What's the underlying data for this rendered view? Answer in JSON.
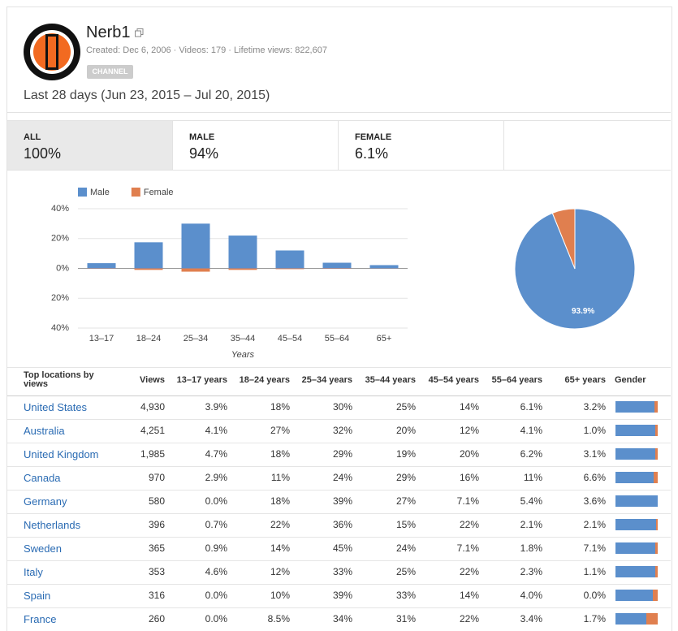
{
  "header": {
    "title": "Nerb1",
    "meta": "Created: Dec 6, 2006 · Videos: 179 · Lifetime views: 822,607",
    "badge": "CHANNEL"
  },
  "date_range": "Last 28 days (Jun 23, 2015 – Jul 20, 2015)",
  "tabs": [
    {
      "label": "ALL",
      "value": "100%"
    },
    {
      "label": "MALE",
      "value": "94%"
    },
    {
      "label": "FEMALE",
      "value": "6.1%"
    }
  ],
  "chart_data": [
    {
      "type": "bar",
      "x_label": "Years",
      "categories": [
        "13–17",
        "18–24",
        "25–34",
        "35–44",
        "45–54",
        "55–64",
        "65+"
      ],
      "series": [
        {
          "name": "Male",
          "color": "#5b8fcc",
          "values": [
            3.5,
            17.5,
            30,
            22,
            12,
            3.8,
            2.2
          ]
        },
        {
          "name": "Female",
          "color": "#e07f4f",
          "values": [
            -0.2,
            -1,
            -2.2,
            -1,
            -0.5,
            -0.3,
            -0.1
          ]
        }
      ],
      "ylim": [
        -40,
        40
      ],
      "yticks": [
        {
          "value": 40,
          "label": "40%"
        },
        {
          "value": 20,
          "label": "20%"
        },
        {
          "value": 0,
          "label": "0%"
        },
        {
          "value": -20,
          "label": "20%"
        },
        {
          "value": -40,
          "label": "40%"
        }
      ],
      "grid": true,
      "legend": "top-left"
    },
    {
      "type": "pie",
      "values": [
        93.9,
        6.1
      ],
      "colors": [
        "#5b8fcc",
        "#e07f4f"
      ],
      "value_labels": [
        "93.9%",
        null
      ]
    }
  ],
  "table": {
    "headers": [
      "Top locations by views",
      "Views",
      "13–17 years",
      "18–24 years",
      "25–34 years",
      "35–44 years",
      "45–54 years",
      "55–64 years",
      "65+ years",
      "Gender"
    ],
    "gender_colors": [
      "#5b8fcc",
      "#e07f4f"
    ],
    "rows": [
      {
        "location": "United States",
        "views": "4,930",
        "ages": [
          "3.9%",
          "18%",
          "30%",
          "25%",
          "14%",
          "6.1%",
          "3.2%"
        ],
        "male_pct": 92
      },
      {
        "location": "Australia",
        "views": "4,251",
        "ages": [
          "4.1%",
          "27%",
          "32%",
          "20%",
          "12%",
          "4.1%",
          "1.0%"
        ],
        "male_pct": 95
      },
      {
        "location": "United Kingdom",
        "views": "1,985",
        "ages": [
          "4.7%",
          "18%",
          "29%",
          "19%",
          "20%",
          "6.2%",
          "3.1%"
        ],
        "male_pct": 94
      },
      {
        "location": "Canada",
        "views": "970",
        "ages": [
          "2.9%",
          "11%",
          "24%",
          "29%",
          "16%",
          "11%",
          "6.6%"
        ],
        "male_pct": 90
      },
      {
        "location": "Germany",
        "views": "580",
        "ages": [
          "0.0%",
          "18%",
          "39%",
          "27%",
          "7.1%",
          "5.4%",
          "3.6%"
        ],
        "male_pct": 100
      },
      {
        "location": "Netherlands",
        "views": "396",
        "ages": [
          "0.7%",
          "22%",
          "36%",
          "15%",
          "22%",
          "2.1%",
          "2.1%"
        ],
        "male_pct": 96
      },
      {
        "location": "Sweden",
        "views": "365",
        "ages": [
          "0.9%",
          "14%",
          "45%",
          "24%",
          "7.1%",
          "1.8%",
          "7.1%"
        ],
        "male_pct": 95
      },
      {
        "location": "Italy",
        "views": "353",
        "ages": [
          "4.6%",
          "12%",
          "33%",
          "25%",
          "22%",
          "2.3%",
          "1.1%"
        ],
        "male_pct": 94
      },
      {
        "location": "Spain",
        "views": "316",
        "ages": [
          "0.0%",
          "10%",
          "39%",
          "33%",
          "14%",
          "4.0%",
          "0.0%"
        ],
        "male_pct": 88
      },
      {
        "location": "France",
        "views": "260",
        "ages": [
          "0.0%",
          "8.5%",
          "34%",
          "31%",
          "22%",
          "3.4%",
          "1.7%"
        ],
        "male_pct": 73
      }
    ]
  }
}
